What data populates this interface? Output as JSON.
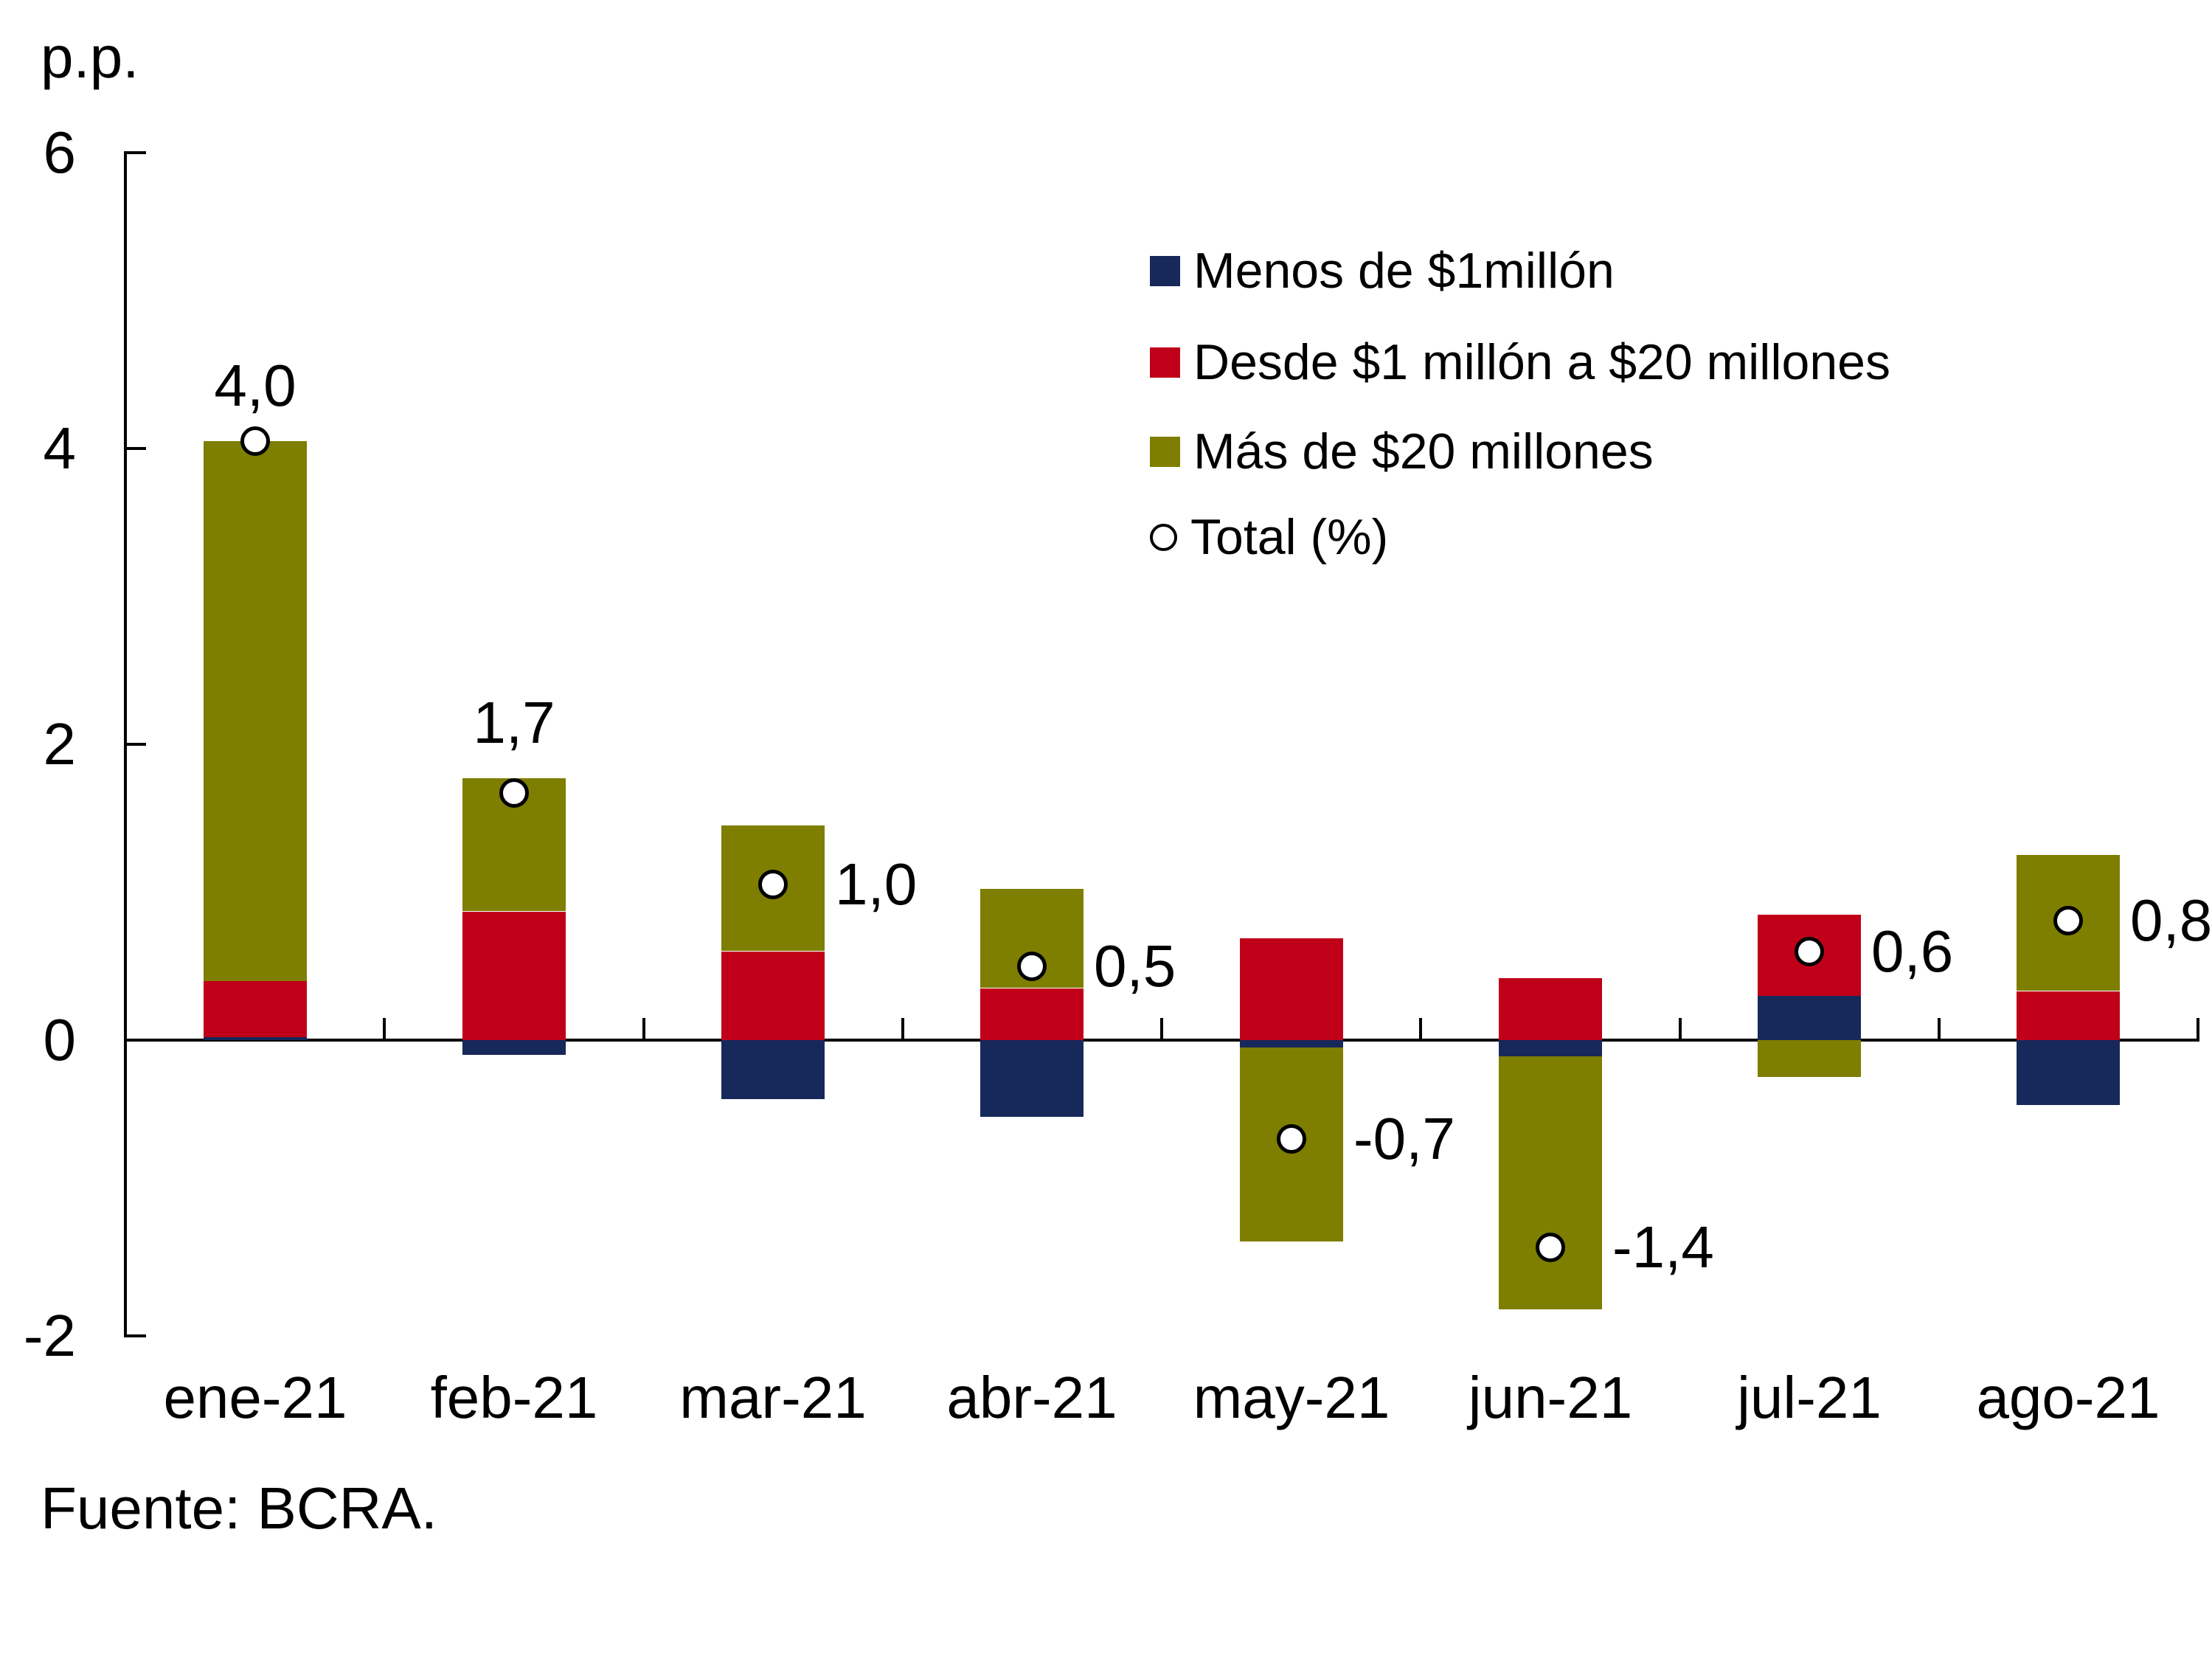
{
  "axis_unit_label": "p.p.",
  "source_note": "Fuente: BCRA.",
  "colors": {
    "navy": "#17285A",
    "red": "#C00019",
    "olive": "#7E7E00",
    "axis": "#000000",
    "marker_fill": "#FFFFFF",
    "marker_stroke": "#000000",
    "background": "#FFFFFF",
    "text": "#000000"
  },
  "y_axis": {
    "tick_labels": [
      "6",
      "4",
      "2",
      "0",
      "-2"
    ],
    "tick_values": [
      6,
      4,
      2,
      0,
      -2
    ],
    "min": -2,
    "max": 6
  },
  "legend": {
    "items": [
      {
        "label": "Menos de $1millón",
        "swatch": "square",
        "color_key": "navy"
      },
      {
        "label": "Desde $1 millón a $20 millones",
        "swatch": "square",
        "color_key": "red"
      },
      {
        "label": "Más de $20 millones",
        "swatch": "square",
        "color_key": "olive"
      },
      {
        "label": "Total (%)",
        "swatch": "circle",
        "color_key": "marker_fill"
      }
    ]
  },
  "chart_data": {
    "type": "bar",
    "subtype": "stacked-columns-with-total-markers",
    "ylabel": "p.p.",
    "ylim": [
      -2,
      6
    ],
    "grid": false,
    "legend_position": "upper-right",
    "decimal_separator": ",",
    "categories": [
      "ene-21",
      "feb-21",
      "mar-21",
      "abr-21",
      "may-21",
      "jun-21",
      "jul-21",
      "ago-21"
    ],
    "series": [
      {
        "name": "Menos de $1millón",
        "color_key": "navy",
        "values": [
          0.02,
          -0.1,
          -0.4,
          -0.52,
          -0.05,
          -0.11,
          0.3,
          -0.44
        ]
      },
      {
        "name": "Desde $1 millón a $20 millones",
        "color_key": "red",
        "values": [
          0.38,
          0.87,
          0.6,
          0.35,
          0.69,
          0.42,
          0.55,
          0.33
        ]
      },
      {
        "name": "Más de $20 millones",
        "color_key": "olive",
        "values": [
          3.65,
          0.9,
          0.85,
          0.67,
          -1.31,
          -1.71,
          -0.25,
          0.92
        ]
      }
    ],
    "totals": {
      "name": "Total (%)",
      "marker": "white-circle-black-outline",
      "values": [
        4.05,
        1.67,
        1.05,
        0.5,
        -0.67,
        -1.4,
        0.6,
        0.81
      ],
      "labels": [
        "4,0",
        "1,7",
        "1,0",
        "0,5",
        "-0,7",
        "-1,4",
        "0,6",
        "0,8"
      ],
      "label_placement": [
        "above",
        "above",
        "right",
        "right",
        "right",
        "right",
        "right",
        "right"
      ]
    }
  }
}
